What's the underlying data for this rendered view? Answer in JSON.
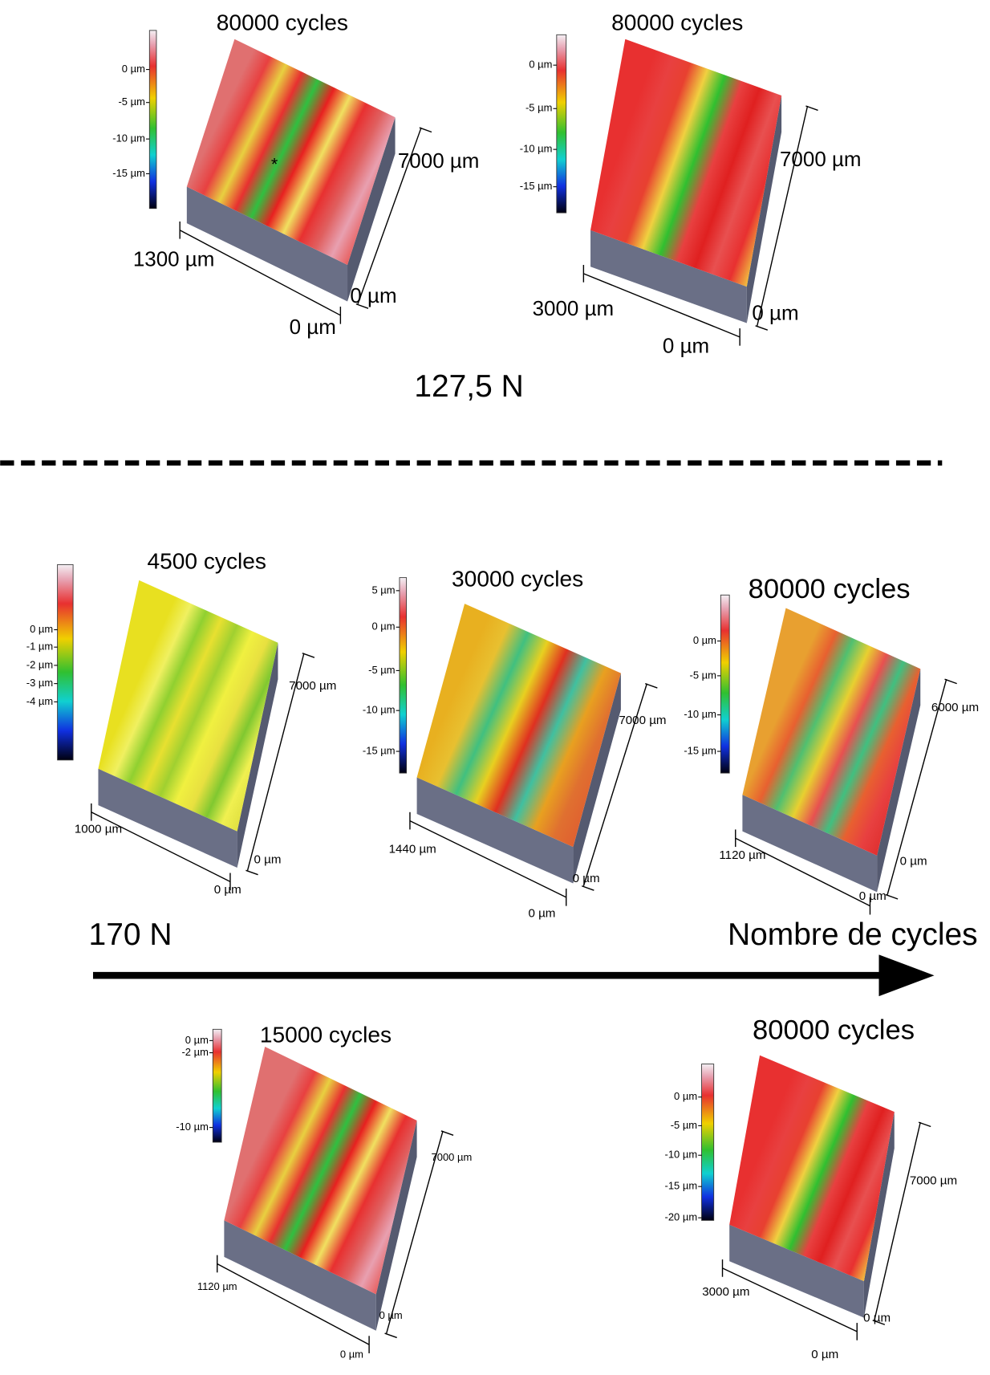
{
  "panels": [
    {
      "title": "80000 cycles",
      "scale_ticks": [
        "0 µm",
        "-5 µm",
        "-10 µm",
        "-15 µm"
      ],
      "length": "7000 µm",
      "width": "1300 µm",
      "zero_length": "0 µm",
      "zero_width": "0 µm",
      "marker": "*"
    },
    {
      "title": "80000 cycles",
      "scale_ticks": [
        "0 µm",
        "-5 µm",
        "-10 µm",
        "-15 µm"
      ],
      "length": "7000 µm",
      "width": "3000 µm",
      "zero_length": "0 µm",
      "zero_width": "0 µm"
    },
    {
      "title": "4500 cycles",
      "scale_ticks": [
        "0 µm",
        "-1 µm",
        "-2 µm",
        "-3 µm",
        "-4 µm"
      ],
      "length": "7000 µm",
      "width": "1000 µm",
      "zero_length": "0 µm",
      "zero_width": "0 µm"
    },
    {
      "title": "30000 cycles",
      "scale_ticks": [
        "5 µm",
        "0 µm",
        "-5 µm",
        "-10 µm",
        "-15 µm"
      ],
      "length": "7000 µm",
      "width": "1440 µm",
      "zero_length": "0 µm",
      "zero_width": "0 µm"
    },
    {
      "title": "80000 cycles",
      "scale_ticks": [
        "0 µm",
        "-5 µm",
        "-10 µm",
        "-15 µm"
      ],
      "length": "6000 µm",
      "width": "1120 µm",
      "zero_length": "0 µm",
      "zero_width": "0 µm"
    },
    {
      "title": "15000 cycles",
      "scale_ticks": [
        "0 µm",
        "-2 µm",
        "-10 µm"
      ],
      "length": "7000 µm",
      "width": "1120 µm",
      "zero_length": "0 µm",
      "zero_width": "0 µm"
    },
    {
      "title": "80000 cycles",
      "scale_ticks": [
        "0 µm",
        "-5 µm",
        "-10 µm",
        "-15 µm",
        "-20 µm"
      ],
      "length": "7000 µm",
      "width": "3000 µm",
      "zero_length": "0 µm",
      "zero_width": "0 µm"
    }
  ],
  "load_top": "127,5 N",
  "load_bottom": "170 N",
  "axis_label": "Nombre de cycles"
}
